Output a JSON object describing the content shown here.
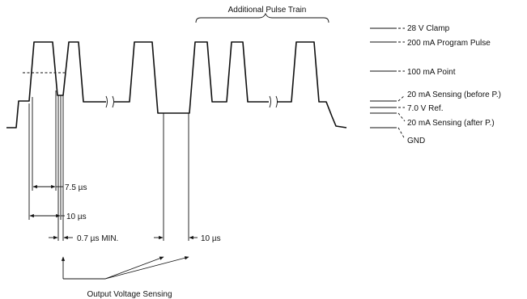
{
  "title": "Additional Pulse Train",
  "levels": [
    {
      "key": "clamp",
      "label": "28 V Clamp"
    },
    {
      "key": "program",
      "label": "200 mA Program Pulse"
    },
    {
      "key": "point100",
      "label": "100 mA Point"
    },
    {
      "key": "sense_before",
      "label": "20 mA Sensing (before P.)"
    },
    {
      "key": "ref",
      "label": "7.0 V Ref."
    },
    {
      "key": "sense_after",
      "label": "20 mA Sensing (after P.)"
    },
    {
      "key": "gnd",
      "label": "GND"
    }
  ],
  "timings": {
    "t1": "7.5 µs",
    "t2": "10 µs",
    "t3": "0.7 µs MIN.",
    "t4": "10 µs"
  },
  "sensing_label": "Output Voltage Sensing"
}
